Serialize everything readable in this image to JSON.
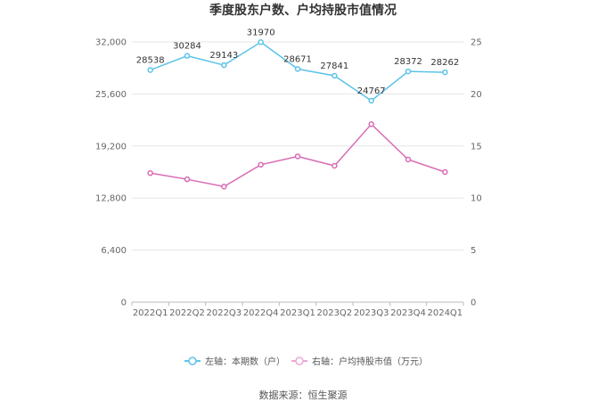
{
  "chart_data": {
    "type": "line",
    "title": "季度股东户数、户均持股市值情况",
    "categories": [
      "2022Q1",
      "2022Q2",
      "2022Q3",
      "2022Q4",
      "2023Q1",
      "2023Q2",
      "2023Q3",
      "2023Q4",
      "2024Q1"
    ],
    "series": [
      {
        "name": "左轴：本期数（户）",
        "axis": "left",
        "color": "#5bc3e8",
        "values": [
          28538,
          30284,
          29143,
          31970,
          28671,
          27841,
          24767,
          28372,
          28262
        ],
        "data_labels": [
          "28538",
          "30284",
          "29143",
          "31970",
          "28671",
          "27841",
          "24767",
          "28372",
          "28262"
        ]
      },
      {
        "name": "右轴：户均持股市值（万元）",
        "axis": "right",
        "color": "#d96bb5",
        "values": [
          12.4,
          11.8,
          11.1,
          13.2,
          14.0,
          13.1,
          17.1,
          13.7,
          12.5
        ]
      }
    ],
    "left_axis": {
      "min": 0,
      "max": 32000,
      "ticks": [
        0,
        6400,
        12800,
        19200,
        25600,
        32000
      ],
      "tick_labels": [
        "0",
        "6,400",
        "12,800",
        "19,200",
        "25,600",
        "32,000"
      ]
    },
    "right_axis": {
      "min": 0,
      "max": 25,
      "ticks": [
        0,
        5,
        10,
        15,
        20,
        25
      ],
      "tick_labels": [
        "0",
        "5",
        "10",
        "15",
        "20",
        "25"
      ]
    },
    "grid": true,
    "legend_position": "bottom"
  },
  "footer": {
    "source": "数据来源：恒生聚源"
  }
}
